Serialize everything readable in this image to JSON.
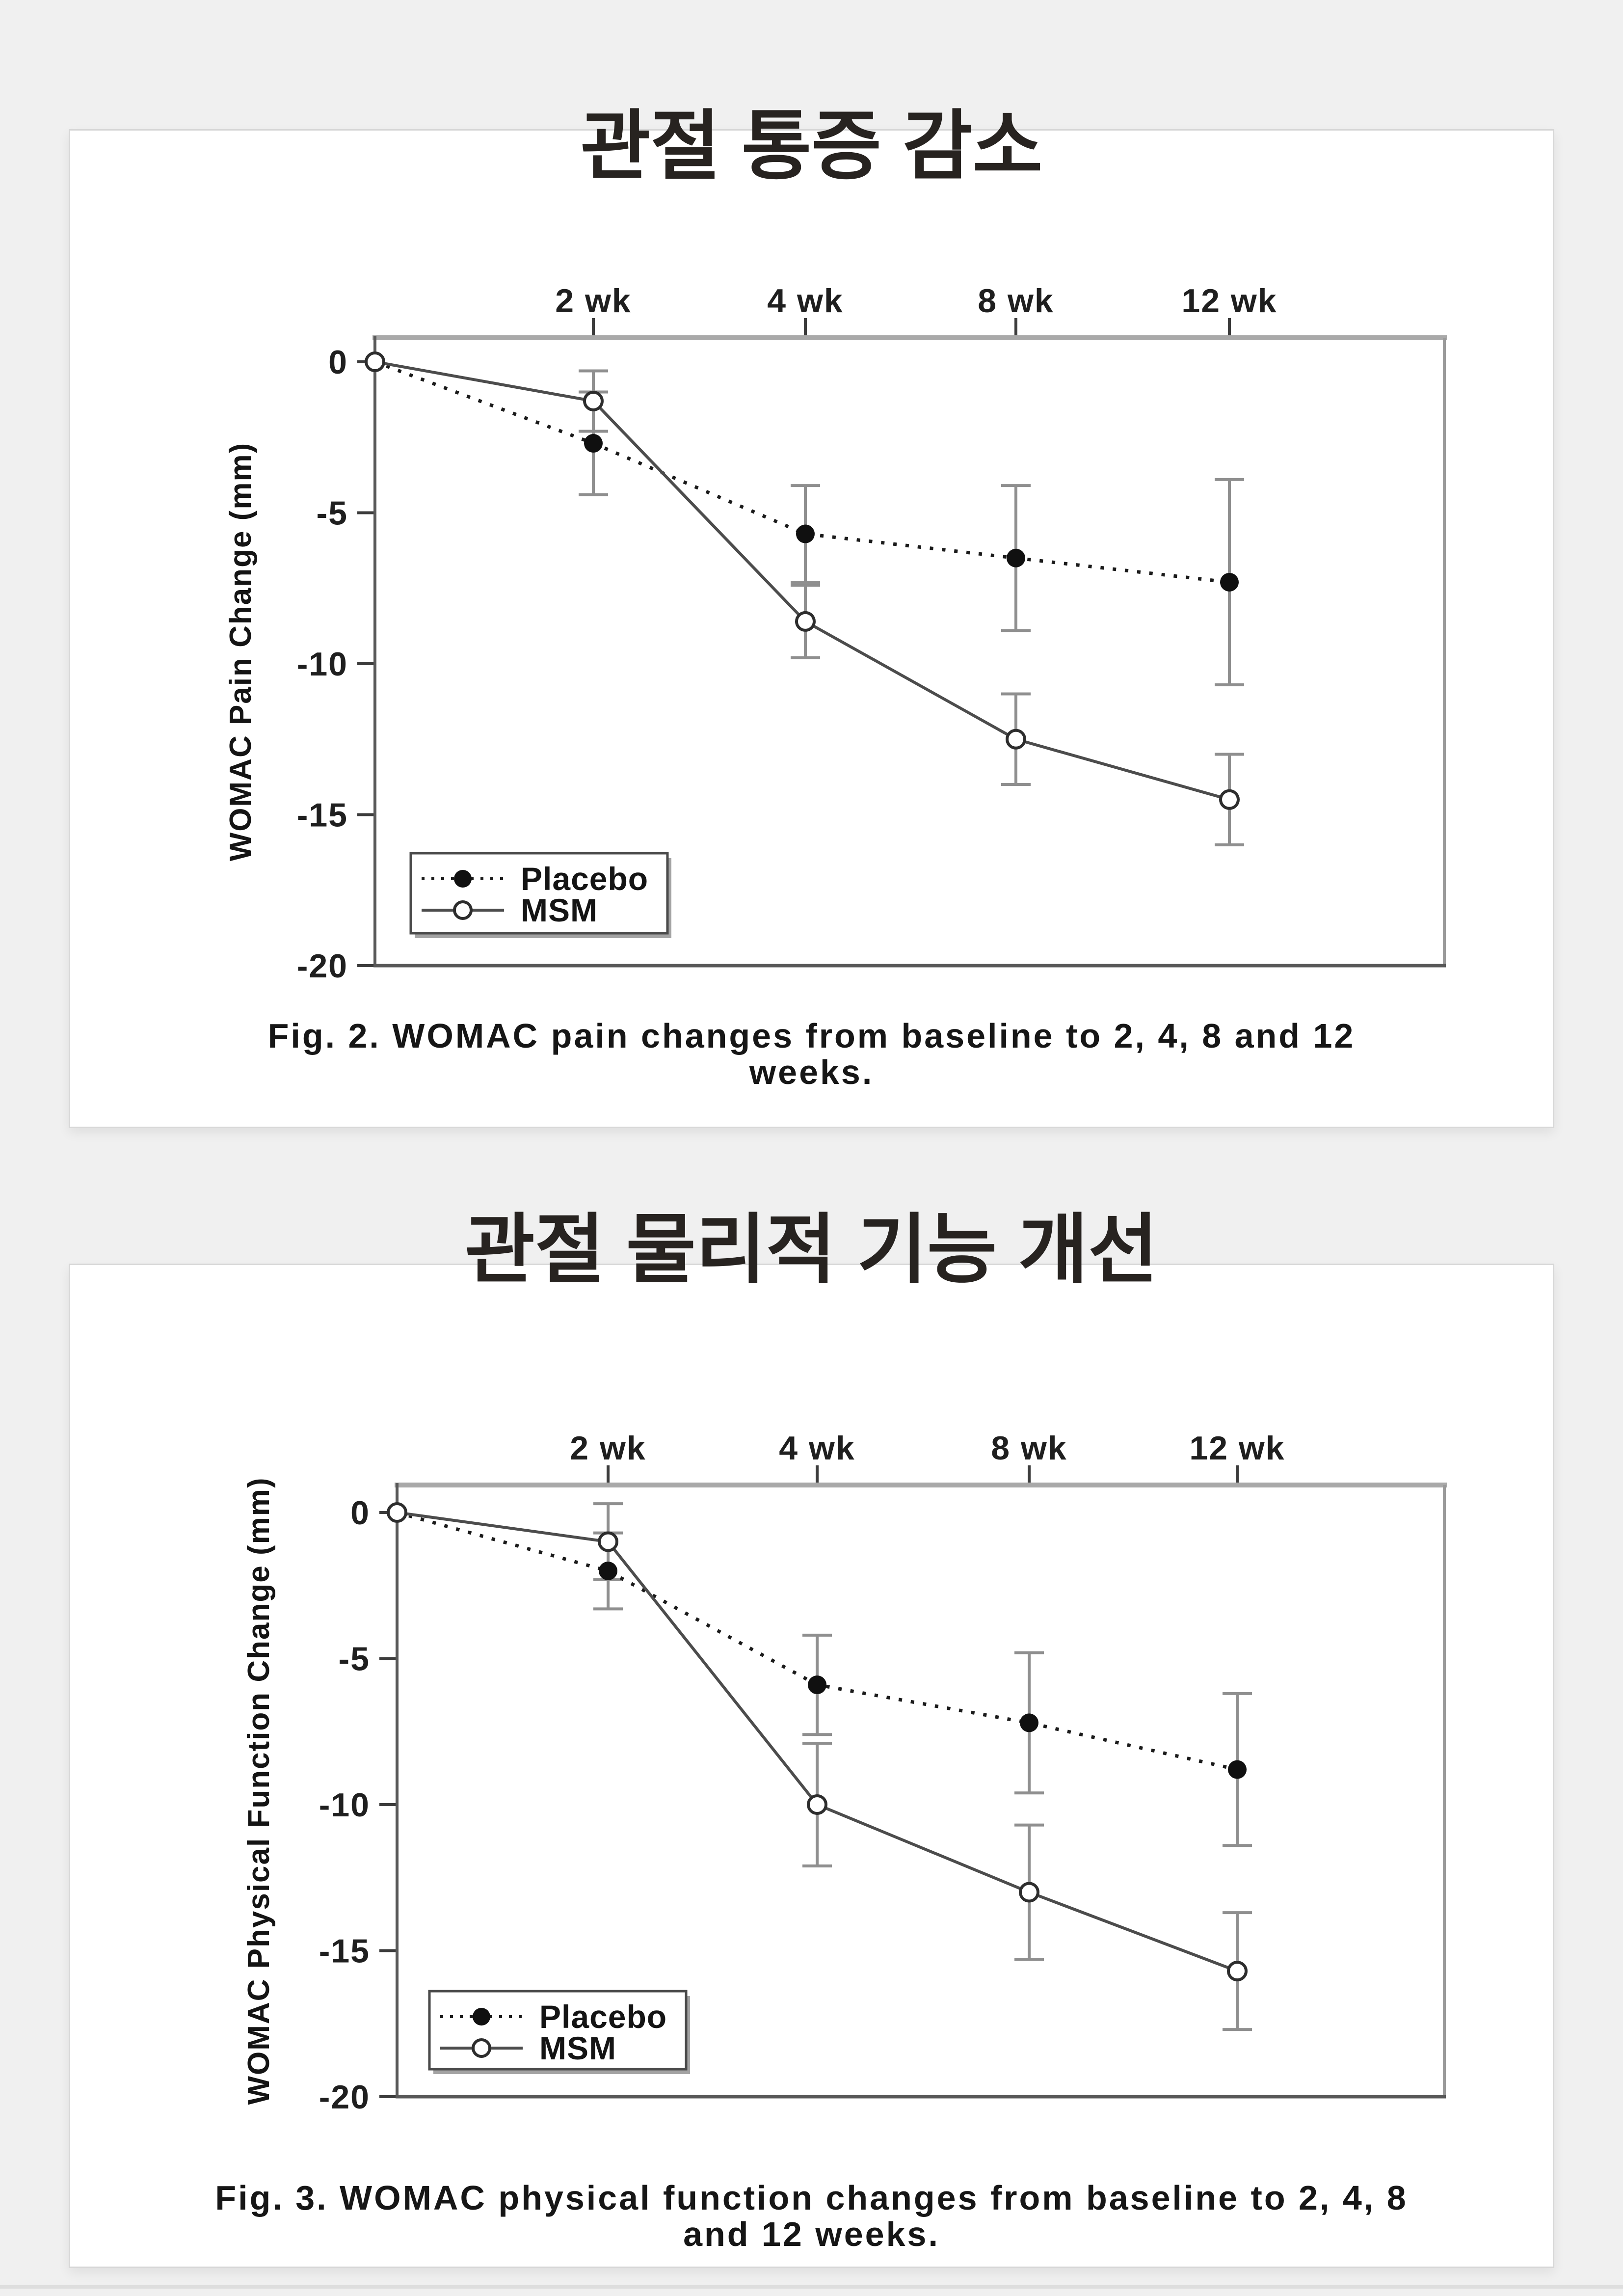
{
  "page": {
    "background": "#f0f0f0",
    "card_color": "#ffffff"
  },
  "figures": [
    {
      "title": "관절 통증 감소",
      "caption_line1": "Fig. 2. WOMAC pain changes from baseline to 2, 4, 8 and 12",
      "caption_line2": "weeks."
    },
    {
      "title": "관절 물리적 기능 개선",
      "caption_line1": "Fig. 3. WOMAC physical function changes from baseline to 2, 4, 8",
      "caption_line2": "and 12 weeks."
    }
  ],
  "chart_data": [
    {
      "type": "line",
      "title": "관절 통증 감소",
      "caption": "Fig. 2. WOMAC pain changes from baseline to 2, 4, 8 and 12 weeks.",
      "x_weeks": [
        0,
        2,
        4,
        8,
        12
      ],
      "x_tick_labels": [
        "2 wk",
        "4 wk",
        "8 wk",
        "12 wk"
      ],
      "x_axis_position": "top",
      "xlabel": "",
      "ylabel": "WOMAC Pain Change (mm)",
      "ylim": [
        -20,
        0
      ],
      "yticks": [
        0,
        -5,
        -10,
        -15,
        -20
      ],
      "ytick_labels": [
        "0",
        "-5",
        "-10",
        "-15",
        "-20"
      ],
      "grid": false,
      "legend_position": "bottom-left",
      "series": [
        {
          "name": "Placebo",
          "line_style": "dotted",
          "marker": "filled-circle",
          "color": "#1a1a1a",
          "values": [
            0,
            -2.7,
            -5.7,
            -6.5,
            -7.3
          ],
          "errors": [
            0,
            1.7,
            1.6,
            2.4,
            3.4
          ]
        },
        {
          "name": "MSM",
          "line_style": "solid",
          "marker": "open-circle",
          "color": "#4c4c4c",
          "values": [
            0,
            -1.3,
            -8.6,
            -12.5,
            -14.5
          ],
          "errors": [
            0,
            1.0,
            1.2,
            1.5,
            1.5
          ]
        }
      ]
    },
    {
      "type": "line",
      "title": "관절 물리적 기능 개선",
      "caption": "Fig. 3. WOMAC physical function changes from baseline to 2, 4, 8 and 12 weeks.",
      "x_weeks": [
        0,
        2,
        4,
        8,
        12
      ],
      "x_tick_labels": [
        "2 wk",
        "4 wk",
        "8 wk",
        "12 wk"
      ],
      "x_axis_position": "top",
      "xlabel": "",
      "ylabel": "WOMAC Physical Function Change (mm)",
      "ylim": [
        -20,
        0
      ],
      "yticks": [
        0,
        -5,
        -10,
        -15,
        -20
      ],
      "ytick_labels": [
        "0",
        "-5",
        "-10",
        "-15",
        "-20"
      ],
      "grid": false,
      "legend_position": "bottom-left",
      "series": [
        {
          "name": "Placebo",
          "line_style": "dotted",
          "marker": "filled-circle",
          "color": "#1a1a1a",
          "values": [
            0,
            -2.0,
            -5.9,
            -7.2,
            -8.8
          ],
          "errors": [
            0,
            1.3,
            1.7,
            2.4,
            2.6
          ]
        },
        {
          "name": "MSM",
          "line_style": "solid",
          "marker": "open-circle",
          "color": "#4c4c4c",
          "values": [
            0,
            -1.0,
            -10.0,
            -13.0,
            -15.7
          ],
          "errors": [
            0,
            1.3,
            2.1,
            2.3,
            2.0
          ]
        }
      ]
    }
  ]
}
